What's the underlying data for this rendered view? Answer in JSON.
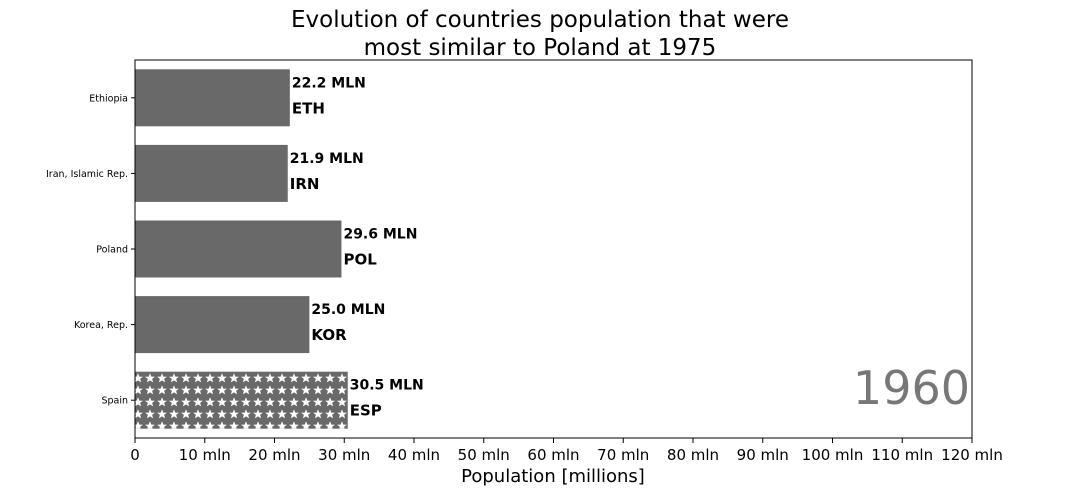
{
  "chart_data": {
    "type": "bar",
    "orientation": "horizontal",
    "title_lines": [
      "Evolution of countries population that were",
      "most similar to Poland at 1975"
    ],
    "xlabel": "Population [millions]",
    "ylabel": "",
    "xlim": [
      0,
      120
    ],
    "x_ticks": [
      0,
      10,
      20,
      30,
      40,
      50,
      60,
      70,
      80,
      90,
      100,
      110,
      120
    ],
    "x_tick_labels": [
      "0",
      "10 mln",
      "20 mln",
      "30 mln",
      "40 mln",
      "50 mln",
      "60 mln",
      "70 mln",
      "80 mln",
      "90 mln",
      "100 mln",
      "110 mln",
      "120 mln"
    ],
    "categories": [
      "Ethiopia",
      "Iran, Islamic Rep.",
      "Poland",
      "Korea, Rep.",
      "Spain"
    ],
    "codes": [
      "ETH",
      "IRN",
      "POL",
      "KOR",
      "ESP"
    ],
    "values": [
      22.2,
      21.9,
      29.6,
      25.0,
      30.5
    ],
    "value_labels": [
      "22.2 MLN",
      "21.9 MLN",
      "29.6 MLN",
      "25.0 MLN",
      "30.5 MLN"
    ],
    "hatched": [
      false,
      false,
      false,
      false,
      true
    ],
    "year": "1960",
    "grid": false,
    "colors": {
      "bar": "#696969",
      "year_text": "#777777",
      "hatch": "#ffffff"
    }
  }
}
